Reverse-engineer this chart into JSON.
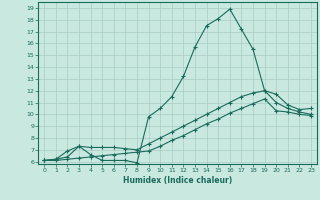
{
  "xlabel": "Humidex (Indice chaleur)",
  "bg_color": "#c8e8e0",
  "line_color": "#1a6b5a",
  "grid_color": "#a8ccc4",
  "xlim": [
    -0.5,
    23.5
  ],
  "ylim": [
    5.8,
    19.5
  ],
  "xticks": [
    0,
    1,
    2,
    3,
    4,
    5,
    6,
    7,
    8,
    9,
    10,
    11,
    12,
    13,
    14,
    15,
    16,
    17,
    18,
    19,
    20,
    21,
    22,
    23
  ],
  "yticks": [
    6,
    7,
    8,
    9,
    10,
    11,
    12,
    13,
    14,
    15,
    16,
    17,
    18,
    19
  ],
  "line1_x": [
    0,
    1,
    2,
    3,
    4,
    5,
    6,
    7,
    8,
    9,
    10,
    11,
    12,
    13,
    14,
    15,
    16,
    17,
    18,
    19,
    20,
    21,
    22,
    23
  ],
  "line1_y": [
    6.1,
    6.2,
    6.4,
    7.3,
    6.6,
    6.1,
    6.1,
    6.1,
    5.9,
    9.8,
    10.5,
    11.5,
    13.2,
    15.7,
    17.5,
    18.1,
    18.9,
    17.2,
    15.5,
    12.0,
    11.7,
    10.8,
    10.4,
    10.5
  ],
  "line2_x": [
    0,
    1,
    2,
    3,
    4,
    5,
    6,
    7,
    8,
    9,
    10,
    11,
    12,
    13,
    14,
    15,
    16,
    17,
    18,
    19,
    20,
    21,
    22,
    23
  ],
  "line2_y": [
    6.1,
    6.2,
    6.9,
    7.3,
    7.2,
    7.2,
    7.2,
    7.1,
    7.0,
    7.5,
    8.0,
    8.5,
    9.0,
    9.5,
    10.0,
    10.5,
    11.0,
    11.5,
    11.8,
    12.0,
    11.0,
    10.5,
    10.2,
    10.0
  ],
  "line3_x": [
    0,
    1,
    2,
    3,
    4,
    5,
    6,
    7,
    8,
    9,
    10,
    11,
    12,
    13,
    14,
    15,
    16,
    17,
    18,
    19,
    20,
    21,
    22,
    23
  ],
  "line3_y": [
    6.1,
    6.1,
    6.2,
    6.3,
    6.4,
    6.5,
    6.6,
    6.7,
    6.8,
    6.9,
    7.3,
    7.8,
    8.2,
    8.7,
    9.2,
    9.6,
    10.1,
    10.5,
    10.9,
    11.3,
    10.3,
    10.2,
    10.0,
    9.9
  ]
}
